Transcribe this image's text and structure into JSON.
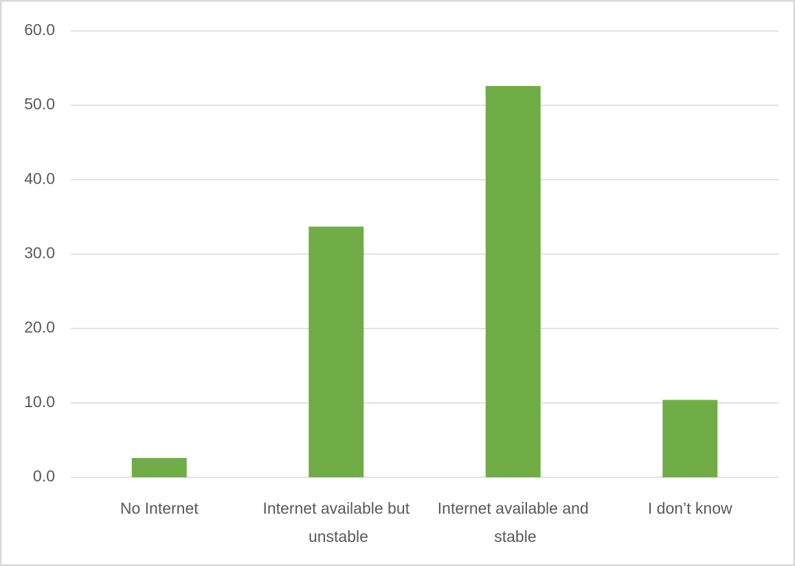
{
  "chart_data": {
    "type": "bar",
    "categories": [
      "No Internet",
      "Internet available but unstable",
      "Internet available and stable",
      "I don’t know"
    ],
    "values": [
      2.6,
      33.7,
      52.6,
      10.4
    ],
    "color": "#70ad47",
    "ylim": [
      0,
      60
    ],
    "yticks": [
      {
        "value": 0,
        "label": "0.0"
      },
      {
        "value": 10,
        "label": "10.0"
      },
      {
        "value": 20,
        "label": "20.0"
      },
      {
        "value": 30,
        "label": "30.0"
      },
      {
        "value": 40,
        "label": "40.0"
      },
      {
        "value": 50,
        "label": "50.0"
      },
      {
        "value": 60,
        "label": "60.0"
      }
    ],
    "grid": true
  }
}
